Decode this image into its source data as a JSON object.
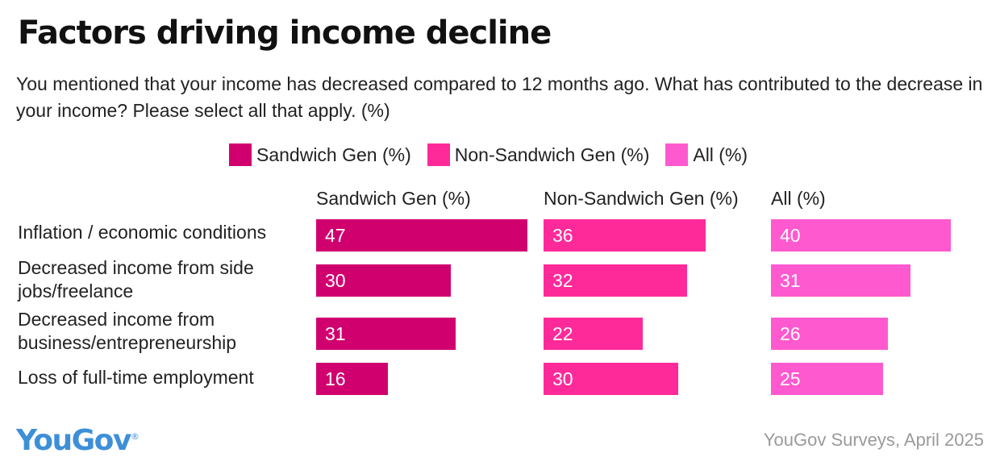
{
  "header": {
    "title": "Factors driving income decline",
    "subtitle": "You mentioned that your income has decreased compared to 12 months ago. What has contributed to the decrease in your income? Please select all that apply. (%)"
  },
  "footer": {
    "logo": "YouGov",
    "source": "YouGov Surveys, April 2025"
  },
  "chart_data": {
    "type": "bar",
    "orientation": "horizontal",
    "layout": "small-multiples",
    "legend_position": "top",
    "grid": false,
    "categories": [
      "Inflation / economic conditions",
      "Decreased income from side jobs/freelance",
      "Decreased income from business/entrepreneurship",
      "Loss of full-time employment"
    ],
    "series": [
      {
        "name": "Sandwich Gen (%)",
        "color": "#d1006f",
        "values": [
          47,
          30,
          31,
          16
        ]
      },
      {
        "name": "Non-Sandwich Gen (%)",
        "color": "#ff2a9a",
        "values": [
          36,
          32,
          22,
          30
        ]
      },
      {
        "name": "All (%)",
        "color": "#ff59cf",
        "values": [
          40,
          31,
          26,
          25
        ]
      }
    ]
  }
}
